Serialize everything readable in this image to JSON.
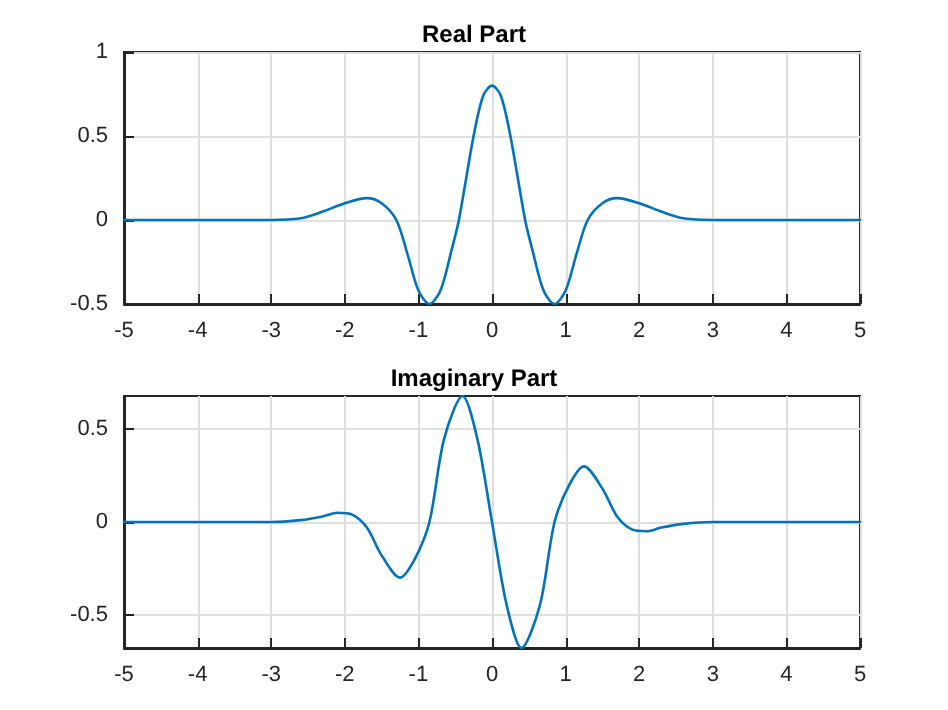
{
  "chart_data": [
    {
      "type": "line",
      "title": "Real Part",
      "xlim": [
        -5,
        5
      ],
      "xticks": [
        -5,
        -4,
        -3,
        -2,
        -1,
        0,
        1,
        2,
        3,
        4,
        5
      ],
      "ylim": [
        -0.5,
        1
      ],
      "yticks": [
        -0.5,
        0,
        0.5,
        1
      ],
      "grid": true,
      "series": [
        {
          "color": "#0072bd",
          "x": [
            -5,
            -3,
            -2.6,
            -2.3,
            -2,
            -1.7,
            -1.5,
            -1.3,
            -1.15,
            -1,
            -0.85,
            -0.7,
            -0.55,
            -0.45,
            -0.25,
            -0.12,
            0,
            0.12,
            0.25,
            0.45,
            0.55,
            0.7,
            0.85,
            1,
            1.15,
            1.3,
            1.5,
            1.7,
            2,
            2.3,
            2.6,
            3,
            5
          ],
          "values": [
            0,
            0,
            0.01,
            0.05,
            0.1,
            0.13,
            0.1,
            0,
            -0.2,
            -0.42,
            -0.5,
            -0.42,
            -0.18,
            0,
            0.5,
            0.74,
            0.8,
            0.74,
            0.5,
            0,
            -0.18,
            -0.42,
            -0.5,
            -0.42,
            -0.2,
            0,
            0.1,
            0.13,
            0.1,
            0.05,
            0.01,
            0,
            0
          ]
        }
      ]
    },
    {
      "type": "line",
      "title": "Imaginary Part",
      "xlim": [
        -5,
        5
      ],
      "xticks": [
        -5,
        -4,
        -3,
        -2,
        -1,
        0,
        1,
        2,
        3,
        4,
        5
      ],
      "ylim": [
        -0.68,
        0.68
      ],
      "yticks": [
        -0.5,
        0,
        0.5
      ],
      "grid": true,
      "series": [
        {
          "color": "#0072bd",
          "x": [
            -5,
            -3,
            -2.6,
            -2.3,
            -2.1,
            -1.9,
            -1.7,
            -1.5,
            -1.25,
            -1.05,
            -0.85,
            -0.65,
            -0.4,
            -0.2,
            0,
            0.2,
            0.4,
            0.65,
            0.85,
            1.05,
            1.25,
            1.5,
            1.7,
            1.9,
            2.1,
            2.3,
            2.6,
            3,
            5
          ],
          "values": [
            0,
            0,
            0.01,
            0.03,
            0.05,
            0.04,
            -0.03,
            -0.18,
            -0.3,
            -0.2,
            0,
            0.45,
            0.68,
            0.45,
            0,
            -0.45,
            -0.68,
            -0.45,
            0,
            0.2,
            0.3,
            0.18,
            0.03,
            -0.04,
            -0.05,
            -0.03,
            -0.01,
            0,
            0
          ]
        }
      ]
    }
  ]
}
